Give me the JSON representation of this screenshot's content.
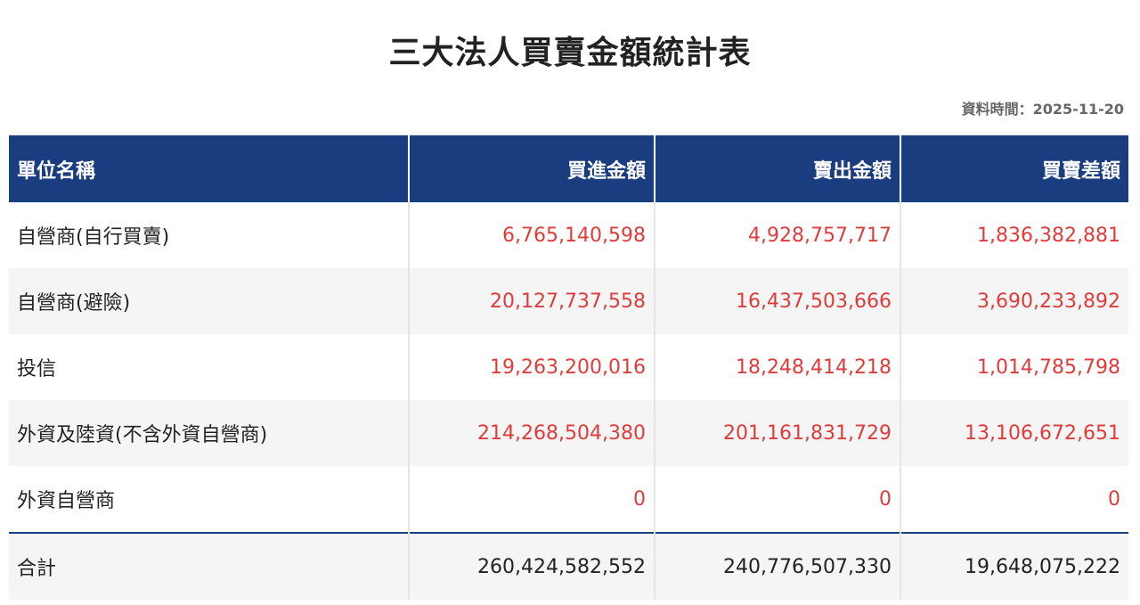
{
  "title": "三大法人買賣金額統計表",
  "data_date": {
    "label": "資料時間：",
    "value": "2025-11-20"
  },
  "table": {
    "headers": [
      "單位名稱",
      "買進金額",
      "賣出金額",
      "買賣差額"
    ],
    "rows": [
      {
        "name": "自營商(自行買賣)",
        "buy": "6,765,140,598",
        "sell": "4,928,757,717",
        "diff": "1,836,382,881"
      },
      {
        "name": "自營商(避險)",
        "buy": "20,127,737,558",
        "sell": "16,437,503,666",
        "diff": "3,690,233,892"
      },
      {
        "name": "投信",
        "buy": "19,263,200,016",
        "sell": "18,248,414,218",
        "diff": "1,014,785,798"
      },
      {
        "name": "外資及陸資(不含外資自營商)",
        "buy": "214,268,504,380",
        "sell": "201,161,831,729",
        "diff": "13,106,672,651"
      },
      {
        "name": "外資自營商",
        "buy": "0",
        "sell": "0",
        "diff": "0"
      }
    ],
    "total": {
      "name": "合計",
      "buy": "260,424,582,552",
      "sell": "240,776,507,330",
      "diff": "19,648,075,222"
    }
  },
  "colors": {
    "header_bg": "#1a3d7f",
    "value_red": "#e03b3b"
  }
}
